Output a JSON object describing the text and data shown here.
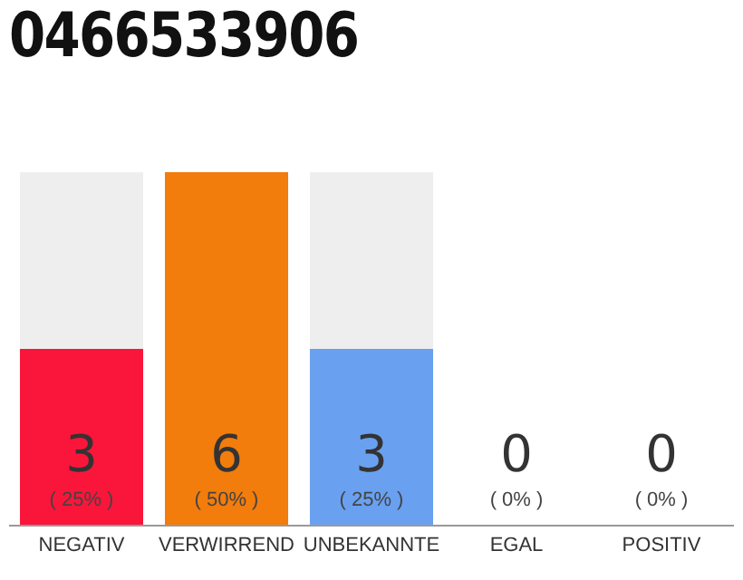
{
  "chart_data": {
    "type": "bar",
    "title": "0466533906",
    "categories": [
      "NEGATIV",
      "VERWIRREND",
      "UNBEKANNTE",
      "EGAL",
      "POSITIV"
    ],
    "values": [
      3,
      6,
      3,
      0,
      0
    ],
    "colors": [
      "#f9163a",
      "#f27c0c",
      "#6aa0f0",
      "#cccccc",
      "#cccccc"
    ],
    "value_labels": [
      "3\n( 25% )",
      "6\n( 50% )",
      "3\n( 25% )",
      "0\n( 0% )",
      "0\n( 0% )"
    ]
  }
}
